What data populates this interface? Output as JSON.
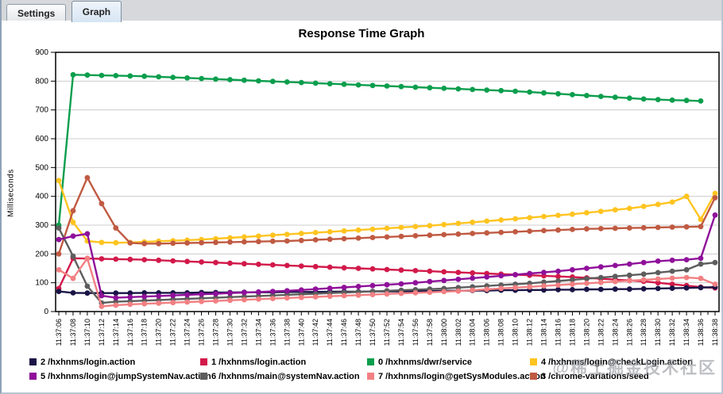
{
  "tabs": [
    {
      "label": "Settings",
      "selected": false
    },
    {
      "label": "Graph",
      "selected": true
    }
  ],
  "watermark": {
    "text": "@稀土掘金技术社区"
  },
  "chart_data": {
    "type": "line",
    "title": "Response Time Graph",
    "ylabel": "Milliseconds",
    "xlabel": "",
    "ylim": [
      0,
      900
    ],
    "ytick_step": 100,
    "grid": true,
    "legend_position": "bottom",
    "x_labels": [
      "11:37:06",
      "11:37:08",
      "11:37:10",
      "11:37:12",
      "11:37:14",
      "11:37:16",
      "11:37:18",
      "11:37:20",
      "11:37:22",
      "11:37:24",
      "11:37:26",
      "11:37:28",
      "11:37:30",
      "11:37:32",
      "11:37:34",
      "11:37:36",
      "11:37:38",
      "11:37:40",
      "11:37:42",
      "11:37:44",
      "11:37:46",
      "11:37:48",
      "11:37:50",
      "11:37:52",
      "11:37:54",
      "11:37:56",
      "11:37:58",
      "11:38:00",
      "11:38:02",
      "11:38:04",
      "11:38:06",
      "11:38:08",
      "11:38:10",
      "11:38:12",
      "11:38:14",
      "11:38:16",
      "11:38:18",
      "11:38:20",
      "11:38:22",
      "11:38:24",
      "11:38:26",
      "11:38:28",
      "11:38:30",
      "11:38:32",
      "11:38:34",
      "11:38:36",
      "11:38:38"
    ],
    "series": [
      {
        "name": "2 /hxhnms/login.action",
        "color": "#1a1446",
        "values": [
          70,
          65,
          64,
          64,
          64,
          64,
          65,
          65,
          65,
          65,
          66,
          66,
          66,
          67,
          67,
          67,
          68,
          68,
          68,
          69,
          69,
          69,
          70,
          70,
          70,
          71,
          71,
          72,
          72,
          73,
          73,
          74,
          74,
          75,
          75,
          76,
          76,
          77,
          77,
          78,
          78,
          79,
          80,
          81,
          82,
          83,
          85
        ]
      },
      {
        "name": "1 /hxhnms/login.action",
        "color": "#d2194a",
        "values": [
          80,
          185,
          184,
          183,
          182,
          181,
          180,
          178,
          176,
          174,
          172,
          170,
          168,
          166,
          164,
          162,
          160,
          158,
          156,
          154,
          152,
          150,
          148,
          146,
          144,
          142,
          140,
          138,
          136,
          134,
          132,
          130,
          128,
          126,
          124,
          122,
          120,
          117,
          114,
          111,
          108,
          105,
          100,
          95,
          90,
          85,
          82
        ]
      },
      {
        "name": "0 /hxhnms/dwr/service",
        "color": "#0b9e4d",
        "values": [
          300,
          822,
          821,
          820,
          819,
          818,
          817,
          815,
          813,
          811,
          809,
          807,
          805,
          803,
          801,
          799,
          797,
          795,
          793,
          791,
          789,
          787,
          785,
          783,
          781,
          779,
          777,
          775,
          773,
          771,
          769,
          767,
          765,
          762,
          759,
          756,
          753,
          750,
          747,
          744,
          741,
          738,
          736,
          734,
          733,
          731,
          null
        ]
      },
      {
        "name": "4 /hxhnms/login@checkLogin.action",
        "color": "#ffc420",
        "values": [
          455,
          310,
          245,
          240,
          239,
          240,
          242,
          244,
          246,
          248,
          250,
          253,
          256,
          259,
          262,
          265,
          268,
          271,
          274,
          277,
          280,
          283,
          286,
          289,
          292,
          295,
          298,
          302,
          306,
          310,
          314,
          318,
          322,
          326,
          330,
          334,
          338,
          343,
          348,
          353,
          358,
          365,
          372,
          380,
          400,
          320,
          410
        ]
      },
      {
        "name": "5 /hxhnms/login@jumpSystemNav.action",
        "color": "#8f109a",
        "values": [
          250,
          262,
          270,
          55,
          48,
          50,
          52,
          54,
          56,
          58,
          60,
          62,
          64,
          66,
          68,
          70,
          72,
          75,
          78,
          81,
          84,
          87,
          90,
          93,
          96,
          100,
          104,
          108,
          112,
          116,
          120,
          124,
          128,
          132,
          136,
          140,
          145,
          150,
          155,
          160,
          165,
          170,
          175,
          178,
          180,
          185,
          335
        ]
      },
      {
        "name": "6 /hxhnms/main@systemNav.action",
        "color": "#5d5d5d",
        "values": [
          290,
          192,
          88,
          30,
          34,
          36,
          38,
          40,
          42,
          44,
          46,
          48,
          50,
          52,
          54,
          56,
          58,
          60,
          62,
          64,
          66,
          68,
          70,
          72,
          74,
          76,
          78,
          80,
          83,
          86,
          89,
          92,
          95,
          98,
          102,
          106,
          110,
          114,
          118,
          122,
          126,
          130,
          135,
          140,
          145,
          165,
          170
        ]
      },
      {
        "name": "7 /hxhnms/login@getSysModules.action",
        "color": "#f28083",
        "values": [
          145,
          115,
          185,
          18,
          22,
          25,
          27,
          29,
          31,
          33,
          35,
          37,
          39,
          41,
          43,
          45,
          47,
          49,
          51,
          53,
          55,
          57,
          59,
          61,
          63,
          65,
          67,
          69,
          71,
          74,
          77,
          80,
          83,
          86,
          89,
          92,
          95,
          98,
          101,
          104,
          107,
          110,
          113,
          116,
          118,
          115,
          95
        ]
      },
      {
        "name": "3 /chrome-variations/seed",
        "color": "#c05a42",
        "values": [
          200,
          350,
          465,
          375,
          290,
          238,
          236,
          236,
          237,
          238,
          239,
          240,
          241,
          242,
          243,
          244,
          245,
          247,
          249,
          251,
          253,
          255,
          257,
          259,
          261,
          263,
          265,
          267,
          269,
          271,
          273,
          275,
          277,
          279,
          281,
          283,
          285,
          287,
          288,
          289,
          290,
          291,
          292,
          293,
          294,
          295,
          395
        ]
      }
    ]
  }
}
